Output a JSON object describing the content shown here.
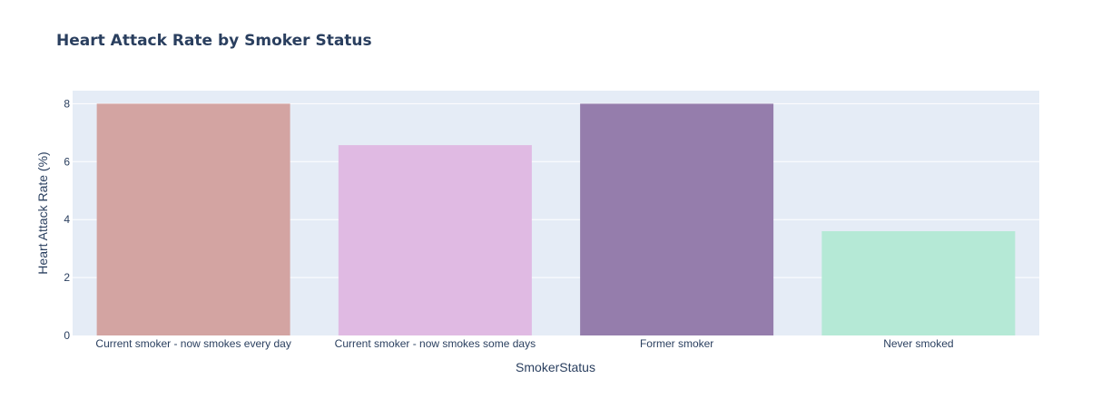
{
  "chart_data": {
    "type": "bar",
    "title": "Heart Attack Rate by Smoker Status",
    "xlabel": "SmokerStatus",
    "ylabel": "Heart Attack Rate (%)",
    "categories": [
      "Current smoker - now smokes every day",
      "Current smoker - now smokes some days",
      "Former smoker",
      "Never smoked"
    ],
    "values": [
      8.0,
      6.57,
      8.0,
      3.6
    ],
    "colors": [
      "#d3a4a2",
      "#e0bae3",
      "#957dac",
      "#b5e9d6"
    ],
    "ylim": [
      0,
      8.45
    ],
    "yticks": [
      0,
      2,
      4,
      6,
      8
    ],
    "plot_background": "#e5ecf6",
    "grid": true
  }
}
